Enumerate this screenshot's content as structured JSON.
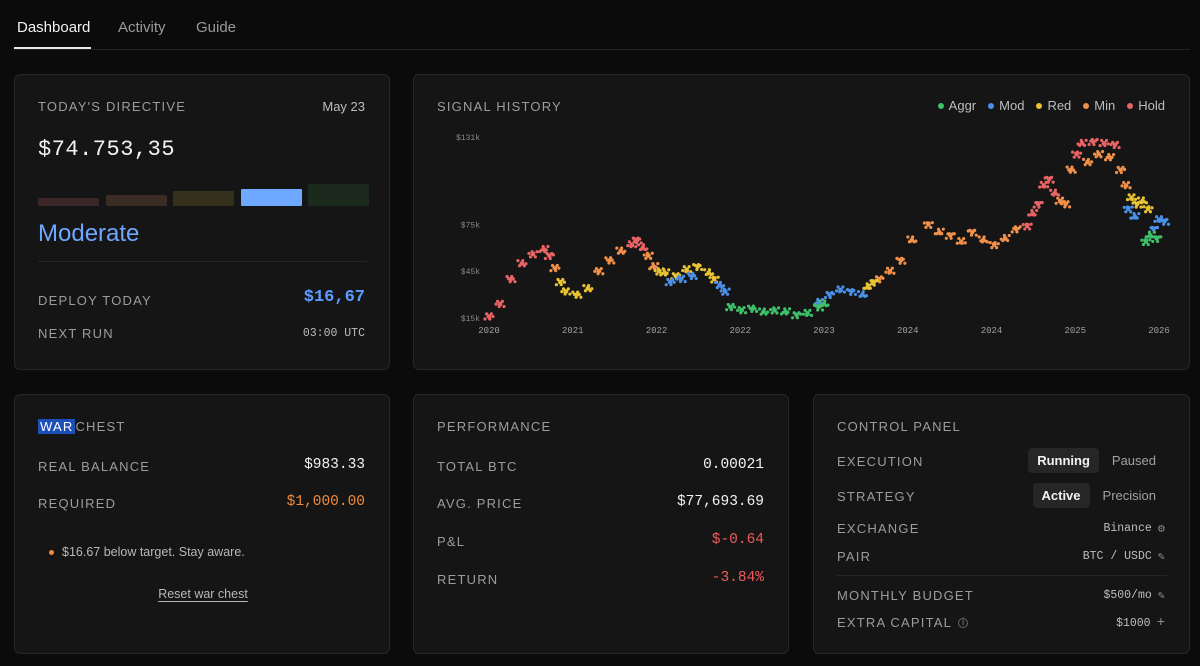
{
  "tabs": [
    {
      "label": "Dashboard",
      "active": true
    },
    {
      "label": "Activity",
      "active": false
    },
    {
      "label": "Guide",
      "active": false
    }
  ],
  "directive": {
    "title": "TODAY'S DIRECTIVE",
    "date": "May 23",
    "amount": "$74.753,35",
    "mode": "Moderate",
    "level_colors": [
      "#3a2626",
      "#3a2c24",
      "#35301c",
      "#6ea8ff",
      "#1c2a1e"
    ],
    "active_level_index": 3,
    "deploy_label": "DEPLOY TODAY",
    "deploy_value": "$16,67",
    "next_run_label": "NEXT RUN",
    "next_run_value": "03:00 UTC"
  },
  "signal": {
    "title": "SIGNAL HISTORY",
    "legend": [
      {
        "label": "Aggr",
        "color": "#3fbf6a"
      },
      {
        "label": "Mod",
        "color": "#4a8fe8"
      },
      {
        "label": "Red",
        "color": "#e8c234"
      },
      {
        "label": "Min",
        "color": "#f0904a"
      },
      {
        "label": "Hold",
        "color": "#e86464"
      }
    ]
  },
  "chart_data": {
    "type": "scatter",
    "title": "SIGNAL HISTORY",
    "x_tick_labels": [
      "2020",
      "2021",
      "2022",
      "2022",
      "2023",
      "2024",
      "2024",
      "2025",
      "2026"
    ],
    "y_tick_labels": [
      "$131k",
      "$75k",
      "$45k",
      "$15k"
    ],
    "y_ticks": [
      131,
      75,
      45,
      15
    ],
    "ylim": [
      15,
      131
    ],
    "xlim": [
      2020.0,
      2026.1
    ],
    "series": [
      {
        "name": "Hold",
        "color": "#e86464",
        "points": [
          [
            2020.0,
            16
          ],
          [
            2020.1,
            24
          ],
          [
            2020.2,
            40
          ],
          [
            2020.3,
            50
          ],
          [
            2020.4,
            56
          ],
          [
            2020.5,
            59
          ],
          [
            2020.55,
            55
          ],
          [
            2021.3,
            62
          ],
          [
            2021.35,
            65
          ],
          [
            2021.4,
            60
          ],
          [
            2024.9,
            74
          ],
          [
            2024.95,
            82
          ],
          [
            2025.0,
            88
          ],
          [
            2025.05,
            100
          ],
          [
            2025.1,
            104
          ],
          [
            2025.15,
            95
          ],
          [
            2025.35,
            120
          ],
          [
            2025.4,
            127
          ],
          [
            2025.5,
            128
          ],
          [
            2025.6,
            127
          ],
          [
            2025.7,
            126
          ]
        ]
      },
      {
        "name": "Min",
        "color": "#f0904a",
        "points": [
          [
            2020.6,
            47
          ],
          [
            2021.0,
            45
          ],
          [
            2021.1,
            52
          ],
          [
            2021.2,
            58
          ],
          [
            2021.45,
            55
          ],
          [
            2021.5,
            48
          ],
          [
            2023.55,
            40
          ],
          [
            2023.65,
            45
          ],
          [
            2023.75,
            52
          ],
          [
            2023.85,
            65
          ],
          [
            2024.0,
            75
          ],
          [
            2024.1,
            70
          ],
          [
            2024.2,
            68
          ],
          [
            2024.3,
            64
          ],
          [
            2024.4,
            70
          ],
          [
            2024.5,
            65
          ],
          [
            2024.6,
            62
          ],
          [
            2024.7,
            66
          ],
          [
            2024.8,
            72
          ],
          [
            2025.2,
            90
          ],
          [
            2025.25,
            88
          ],
          [
            2025.3,
            110
          ],
          [
            2025.45,
            115
          ],
          [
            2025.55,
            120
          ],
          [
            2025.65,
            118
          ],
          [
            2025.75,
            110
          ],
          [
            2025.8,
            100
          ]
        ]
      },
      {
        "name": "Red",
        "color": "#e8c234",
        "points": [
          [
            2020.65,
            38
          ],
          [
            2020.7,
            32
          ],
          [
            2020.8,
            30
          ],
          [
            2020.9,
            34
          ],
          [
            2021.55,
            45
          ],
          [
            2021.6,
            44
          ],
          [
            2021.7,
            42
          ],
          [
            2021.8,
            46
          ],
          [
            2021.9,
            48
          ],
          [
            2022.0,
            44
          ],
          [
            2022.05,
            40
          ],
          [
            2023.45,
            35
          ],
          [
            2023.5,
            38
          ],
          [
            2025.85,
            92
          ],
          [
            2025.9,
            88
          ],
          [
            2025.95,
            90
          ],
          [
            2026.0,
            85
          ]
        ]
      },
      {
        "name": "Mod",
        "color": "#4a8fe8",
        "points": [
          [
            2021.65,
            38
          ],
          [
            2021.75,
            40
          ],
          [
            2021.85,
            42
          ],
          [
            2022.1,
            36
          ],
          [
            2022.15,
            32
          ],
          [
            2023.0,
            25
          ],
          [
            2023.1,
            30
          ],
          [
            2023.2,
            33
          ],
          [
            2023.3,
            32
          ],
          [
            2023.4,
            30
          ],
          [
            2025.82,
            85
          ],
          [
            2025.88,
            80
          ],
          [
            2026.05,
            72
          ],
          [
            2026.1,
            78
          ],
          [
            2026.15,
            77
          ]
        ]
      },
      {
        "name": "Aggr",
        "color": "#3fbf6a",
        "points": [
          [
            2022.2,
            22
          ],
          [
            2022.3,
            20
          ],
          [
            2022.4,
            21
          ],
          [
            2022.5,
            19
          ],
          [
            2022.6,
            20
          ],
          [
            2022.7,
            19
          ],
          [
            2022.8,
            17
          ],
          [
            2022.9,
            18
          ],
          [
            2023.0,
            22
          ],
          [
            2023.05,
            24
          ],
          [
            2025.98,
            64
          ],
          [
            2026.02,
            68
          ],
          [
            2026.08,
            66
          ]
        ]
      }
    ]
  },
  "war": {
    "title_highlight": "WAR",
    "title_rest": "CHEST",
    "real_label": "REAL BALANCE",
    "real_value": "$983.33",
    "required_label": "REQUIRED",
    "required_value": "$1,000.00",
    "note": "$16.67 below target. Stay aware.",
    "reset_label": "Reset war chest"
  },
  "performance": {
    "title": "PERFORMANCE",
    "rows": [
      {
        "label": "TOTAL BTC",
        "value": "0.00021",
        "color": "#f2f2f2"
      },
      {
        "label": "AVG. PRICE",
        "value": "$77,693.69",
        "color": "#f2f2f2"
      },
      {
        "label": "P&L",
        "value": "$-0.64",
        "color": "#f05a5a"
      },
      {
        "label": "RETURN",
        "value": "-3.84%",
        "color": "#f05a5a"
      }
    ]
  },
  "control": {
    "title": "CONTROL PANEL",
    "execution_label": "EXECUTION",
    "execution_options": [
      "Running",
      "Paused"
    ],
    "execution_selected": "Running",
    "strategy_label": "STRATEGY",
    "strategy_options": [
      "Active",
      "Precision"
    ],
    "strategy_selected": "Active",
    "exchange_label": "EXCHANGE",
    "exchange_value": "Binance",
    "pair_label": "PAIR",
    "pair_value": "BTC / USDC",
    "budget_label": "MONTHLY BUDGET",
    "budget_value": "$500/mo",
    "extra_label": "EXTRA CAPITAL",
    "extra_value": "$1000"
  }
}
